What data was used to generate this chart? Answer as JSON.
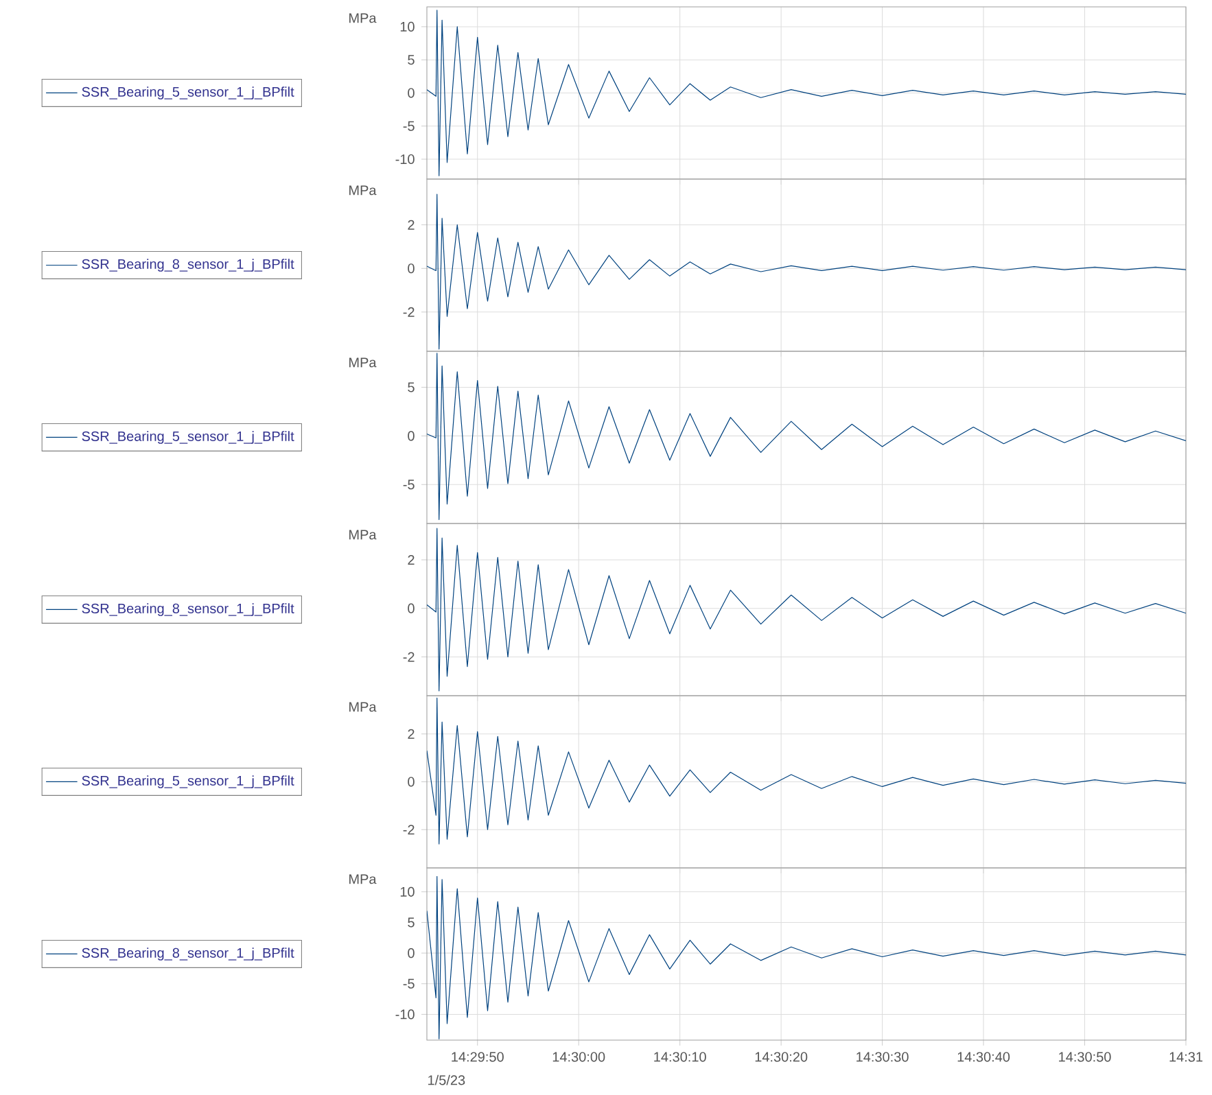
{
  "chart_data": [
    {
      "type": "line",
      "ylabel": "MPa",
      "grid": true,
      "legend": "left",
      "tick_labels": "y",
      "ylim": [
        -13,
        13
      ],
      "yticks": [
        -10,
        -5,
        0,
        5,
        10
      ],
      "xlim": [
        14.495833,
        14.516667
      ],
      "xticks": [
        {
          "value": 14.497222,
          "label": null
        },
        {
          "value": 14.5,
          "label": null
        },
        {
          "value": 14.502778,
          "label": null
        },
        {
          "value": 14.505556,
          "label": null
        },
        {
          "value": 14.508333,
          "label": null
        },
        {
          "value": 14.511111,
          "label": null
        },
        {
          "value": 14.513889,
          "label": null
        },
        {
          "value": 14.516667,
          "label": null
        }
      ],
      "x": [
        14.495833,
        14.496083,
        14.496111,
        14.496167,
        14.49625,
        14.496389,
        14.496667,
        14.496944,
        14.497222,
        14.4975,
        14.497778,
        14.498056,
        14.498333,
        14.498611,
        14.498889,
        14.499167,
        14.499722,
        14.500278,
        14.500833,
        14.501389,
        14.501944,
        14.5025,
        14.503056,
        14.503611,
        14.504167,
        14.505,
        14.505833,
        14.506667,
        14.5075,
        14.508333,
        14.509167,
        14.51,
        14.510833,
        14.511667,
        14.5125,
        14.513333,
        14.514167,
        14.515,
        14.515833,
        14.516667
      ],
      "series": [
        {
          "name": "SSR_Bearing_5_sensor_1_j_BPfilt",
          "color": "#00427f",
          "values": [
            0.5,
            -0.5,
            12.5,
            -12.5,
            11,
            -10.5,
            10,
            -9.2,
            8.4,
            -7.8,
            7.2,
            -6.6,
            6.1,
            -5.6,
            5.2,
            -4.8,
            4.3,
            -3.8,
            3.3,
            -2.8,
            2.3,
            -1.8,
            1.4,
            -1.1,
            0.9,
            -0.7,
            0.5,
            -0.5,
            0.4,
            -0.4,
            0.4,
            -0.3,
            0.3,
            -0.3,
            0.3,
            -0.3,
            0.2,
            -0.2,
            0.2,
            -0.2
          ]
        }
      ]
    },
    {
      "type": "line",
      "ylabel": "MPa",
      "grid": true,
      "legend": "left",
      "tick_labels": "y",
      "ylim": [
        -3.8,
        4.1
      ],
      "yticks": [
        -2,
        0,
        2
      ],
      "xlim": [
        14.495833,
        14.516667
      ],
      "xticks": [
        {
          "value": 14.497222,
          "label": null
        },
        {
          "value": 14.5,
          "label": null
        },
        {
          "value": 14.502778,
          "label": null
        },
        {
          "value": 14.505556,
          "label": null
        },
        {
          "value": 14.508333,
          "label": null
        },
        {
          "value": 14.511111,
          "label": null
        },
        {
          "value": 14.513889,
          "label": null
        },
        {
          "value": 14.516667,
          "label": null
        }
      ],
      "x": [
        14.495833,
        14.496083,
        14.496111,
        14.496167,
        14.49625,
        14.496389,
        14.496667,
        14.496944,
        14.497222,
        14.4975,
        14.497778,
        14.498056,
        14.498333,
        14.498611,
        14.498889,
        14.499167,
        14.499722,
        14.500278,
        14.500833,
        14.501389,
        14.501944,
        14.5025,
        14.503056,
        14.503611,
        14.504167,
        14.505,
        14.505833,
        14.506667,
        14.5075,
        14.508333,
        14.509167,
        14.51,
        14.510833,
        14.511667,
        14.5125,
        14.513333,
        14.514167,
        14.515,
        14.515833,
        14.516667
      ],
      "series": [
        {
          "name": "SSR_Bearing_8_sensor_1_j_BPfilt",
          "color": "#00427f",
          "values": [
            0.1,
            -0.1,
            3.4,
            -3.7,
            2.3,
            -2.2,
            2.0,
            -1.85,
            1.65,
            -1.5,
            1.4,
            -1.3,
            1.2,
            -1.1,
            1.0,
            -0.95,
            0.85,
            -0.75,
            0.6,
            -0.5,
            0.4,
            -0.35,
            0.3,
            -0.25,
            0.2,
            -0.15,
            0.12,
            -0.1,
            0.1,
            -0.1,
            0.1,
            -0.08,
            0.08,
            -0.08,
            0.08,
            -0.06,
            0.06,
            -0.06,
            0.06,
            -0.06
          ]
        }
      ]
    },
    {
      "type": "line",
      "ylabel": "MPa",
      "grid": true,
      "legend": "left",
      "tick_labels": "y",
      "ylim": [
        -9,
        8.7
      ],
      "yticks": [
        -5,
        0,
        5
      ],
      "xlim": [
        14.495833,
        14.516667
      ],
      "xticks": [
        {
          "value": 14.497222,
          "label": null
        },
        {
          "value": 14.5,
          "label": null
        },
        {
          "value": 14.502778,
          "label": null
        },
        {
          "value": 14.505556,
          "label": null
        },
        {
          "value": 14.508333,
          "label": null
        },
        {
          "value": 14.511111,
          "label": null
        },
        {
          "value": 14.513889,
          "label": null
        },
        {
          "value": 14.516667,
          "label": null
        }
      ],
      "x": [
        14.495833,
        14.496083,
        14.496111,
        14.496167,
        14.49625,
        14.496389,
        14.496667,
        14.496944,
        14.497222,
        14.4975,
        14.497778,
        14.498056,
        14.498333,
        14.498611,
        14.498889,
        14.499167,
        14.499722,
        14.500278,
        14.500833,
        14.501389,
        14.501944,
        14.5025,
        14.503056,
        14.503611,
        14.504167,
        14.505,
        14.505833,
        14.506667,
        14.5075,
        14.508333,
        14.509167,
        14.51,
        14.510833,
        14.511667,
        14.5125,
        14.513333,
        14.514167,
        14.515,
        14.515833,
        14.516667
      ],
      "series": [
        {
          "name": "SSR_Bearing_5_sensor_1_j_BPfilt",
          "color": "#00427f",
          "values": [
            0.2,
            -0.2,
            8.5,
            -8.6,
            7.2,
            -7.0,
            6.6,
            -6.2,
            5.7,
            -5.4,
            5.1,
            -4.9,
            4.6,
            -4.4,
            4.2,
            -4.0,
            3.6,
            -3.3,
            3.0,
            -2.8,
            2.7,
            -2.5,
            2.3,
            -2.1,
            1.9,
            -1.7,
            1.5,
            -1.4,
            1.2,
            -1.1,
            1.0,
            -0.9,
            0.9,
            -0.8,
            0.7,
            -0.7,
            0.6,
            -0.6,
            0.5,
            -0.5
          ]
        }
      ]
    },
    {
      "type": "line",
      "ylabel": "MPa",
      "grid": true,
      "legend": "left",
      "tick_labels": "y",
      "ylim": [
        -3.6,
        3.5
      ],
      "yticks": [
        -2,
        0,
        2
      ],
      "xlim": [
        14.495833,
        14.516667
      ],
      "xticks": [
        {
          "value": 14.497222,
          "label": null
        },
        {
          "value": 14.5,
          "label": null
        },
        {
          "value": 14.502778,
          "label": null
        },
        {
          "value": 14.505556,
          "label": null
        },
        {
          "value": 14.508333,
          "label": null
        },
        {
          "value": 14.511111,
          "label": null
        },
        {
          "value": 14.513889,
          "label": null
        },
        {
          "value": 14.516667,
          "label": null
        }
      ],
      "x": [
        14.495833,
        14.496083,
        14.496111,
        14.496167,
        14.49625,
        14.496389,
        14.496667,
        14.496944,
        14.497222,
        14.4975,
        14.497778,
        14.498056,
        14.498333,
        14.498611,
        14.498889,
        14.499167,
        14.499722,
        14.500278,
        14.500833,
        14.501389,
        14.501944,
        14.5025,
        14.503056,
        14.503611,
        14.504167,
        14.505,
        14.505833,
        14.506667,
        14.5075,
        14.508333,
        14.509167,
        14.51,
        14.510833,
        14.511667,
        14.5125,
        14.513333,
        14.514167,
        14.515,
        14.515833,
        14.516667
      ],
      "series": [
        {
          "name": "SSR_Bearing_8_sensor_1_j_BPfilt",
          "color": "#00427f",
          "values": [
            0.15,
            -0.15,
            3.3,
            -3.4,
            2.9,
            -2.8,
            2.6,
            -2.4,
            2.3,
            -2.1,
            2.1,
            -2.0,
            1.95,
            -1.85,
            1.8,
            -1.7,
            1.6,
            -1.5,
            1.35,
            -1.25,
            1.15,
            -1.05,
            0.95,
            -0.85,
            0.75,
            -0.65,
            0.55,
            -0.5,
            0.45,
            -0.4,
            0.35,
            -0.33,
            0.3,
            -0.28,
            0.25,
            -0.23,
            0.22,
            -0.2,
            0.2,
            -0.2
          ]
        }
      ]
    },
    {
      "type": "line",
      "ylabel": "MPa",
      "grid": true,
      "legend": "left",
      "tick_labels": "y",
      "ylim": [
        -3.6,
        3.6
      ],
      "yticks": [
        -2,
        0,
        2
      ],
      "xlim": [
        14.495833,
        14.516667
      ],
      "xticks": [
        {
          "value": 14.497222,
          "label": null
        },
        {
          "value": 14.5,
          "label": null
        },
        {
          "value": 14.502778,
          "label": null
        },
        {
          "value": 14.505556,
          "label": null
        },
        {
          "value": 14.508333,
          "label": null
        },
        {
          "value": 14.511111,
          "label": null
        },
        {
          "value": 14.513889,
          "label": null
        },
        {
          "value": 14.516667,
          "label": null
        }
      ],
      "x": [
        14.495833,
        14.496083,
        14.496111,
        14.496167,
        14.49625,
        14.496389,
        14.496667,
        14.496944,
        14.497222,
        14.4975,
        14.497778,
        14.498056,
        14.498333,
        14.498611,
        14.498889,
        14.499167,
        14.499722,
        14.500278,
        14.500833,
        14.501389,
        14.501944,
        14.5025,
        14.503056,
        14.503611,
        14.504167,
        14.505,
        14.505833,
        14.506667,
        14.5075,
        14.508333,
        14.509167,
        14.51,
        14.510833,
        14.511667,
        14.5125,
        14.513333,
        14.514167,
        14.515,
        14.515833,
        14.516667
      ],
      "series": [
        {
          "name": "SSR_Bearing_5_sensor_1_j_BPfilt",
          "color": "#00427f",
          "values": [
            1.3,
            -1.4,
            3.5,
            -2.6,
            2.5,
            -2.4,
            2.35,
            -2.3,
            2.1,
            -2.0,
            1.9,
            -1.8,
            1.7,
            -1.6,
            1.5,
            -1.4,
            1.25,
            -1.1,
            0.9,
            -0.85,
            0.7,
            -0.6,
            0.5,
            -0.45,
            0.4,
            -0.35,
            0.3,
            -0.28,
            0.22,
            -0.2,
            0.18,
            -0.15,
            0.12,
            -0.12,
            0.1,
            -0.1,
            0.08,
            -0.08,
            0.06,
            -0.06
          ]
        }
      ]
    },
    {
      "type": "line",
      "ylabel": "MPa",
      "grid": true,
      "legend": "left",
      "ylim": [
        -14.2,
        13.9
      ],
      "yticks": [
        -10,
        -5,
        0,
        5,
        10
      ],
      "xlim": [
        14.495833,
        14.516667
      ],
      "xticks": [
        {
          "value": 14.497222,
          "label": "14:29:50"
        },
        {
          "value": 14.5,
          "label": "14:30:00"
        },
        {
          "value": 14.502778,
          "label": "14:30:10"
        },
        {
          "value": 14.505556,
          "label": "14:30:20"
        },
        {
          "value": 14.508333,
          "label": "14:30:30"
        },
        {
          "value": 14.511111,
          "label": "14:30:40"
        },
        {
          "value": 14.513889,
          "label": "14:30:50"
        },
        {
          "value": 14.516667,
          "label": "14:31"
        }
      ],
      "x": [
        14.495833,
        14.496083,
        14.496111,
        14.496167,
        14.49625,
        14.496389,
        14.496667,
        14.496944,
        14.497222,
        14.4975,
        14.497778,
        14.498056,
        14.498333,
        14.498611,
        14.498889,
        14.499167,
        14.499722,
        14.500278,
        14.500833,
        14.501389,
        14.501944,
        14.5025,
        14.503056,
        14.503611,
        14.504167,
        14.505,
        14.505833,
        14.506667,
        14.5075,
        14.508333,
        14.509167,
        14.51,
        14.510833,
        14.511667,
        14.5125,
        14.513333,
        14.514167,
        14.515,
        14.515833,
        14.516667
      ],
      "series": [
        {
          "name": "SSR_Bearing_8_sensor_1_j_BPfilt",
          "color": "#00427f",
          "values": [
            6.9,
            -7.3,
            12.5,
            -14,
            12,
            -11.5,
            10.5,
            -10.5,
            9.0,
            -9.4,
            8.4,
            -8.0,
            7.5,
            -7.0,
            6.6,
            -6.2,
            5.3,
            -4.7,
            4.0,
            -3.5,
            3.0,
            -2.6,
            2.1,
            -1.8,
            1.5,
            -1.2,
            1.0,
            -0.8,
            0.7,
            -0.6,
            0.5,
            -0.5,
            0.4,
            -0.4,
            0.4,
            -0.4,
            0.3,
            -0.3,
            0.3,
            -0.3
          ]
        }
      ],
      "annotations": [
        "1/5/23"
      ]
    }
  ]
}
